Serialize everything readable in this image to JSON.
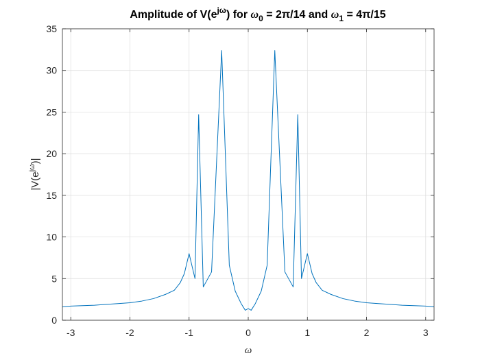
{
  "chart_data": {
    "type": "line",
    "title": {
      "prefix": "Amplitude of V(e",
      "sup": "jω",
      "mid1": ") for ",
      "omega0": "ω",
      "sub0": "0",
      "eq0": " = 2π/14 and ",
      "omega1": "ω",
      "sub1": "1",
      "eq1": " = 4π/15"
    },
    "xlabel": "ω",
    "ylabel": {
      "prefix": "|V(e",
      "sup": "jω",
      "suffix": ")|"
    },
    "xlim": [
      -3.14159,
      3.14159
    ],
    "ylim": [
      0,
      35
    ],
    "xticks": [
      -3,
      -2,
      -1,
      0,
      1,
      2,
      3
    ],
    "xtick_labels": [
      "-3",
      "-2",
      "-1",
      "0",
      "1",
      "2",
      "3"
    ],
    "yticks": [
      0,
      5,
      10,
      15,
      20,
      25,
      30,
      35
    ],
    "ytick_labels": [
      "0",
      "5",
      "10",
      "15",
      "20",
      "25",
      "30",
      "35"
    ],
    "grid": true,
    "line_color": "#0072BD",
    "peaks": [
      {
        "x": -0.838,
        "y": 24.7
      },
      {
        "x": -0.449,
        "y": 32.4
      },
      {
        "x": 0.449,
        "y": 32.4
      },
      {
        "x": 0.838,
        "y": 24.7
      }
    ],
    "series": [
      {
        "points": [
          [
            -3.1416,
            1.6
          ],
          [
            -3.0,
            1.7
          ],
          [
            -2.8,
            1.75
          ],
          [
            -2.6,
            1.8
          ],
          [
            -2.4,
            1.9
          ],
          [
            -2.2,
            2.0
          ],
          [
            -2.0,
            2.1
          ],
          [
            -1.8,
            2.3
          ],
          [
            -1.6,
            2.6
          ],
          [
            -1.4,
            3.1
          ],
          [
            -1.25,
            3.6
          ],
          [
            -1.15,
            4.5
          ],
          [
            -1.08,
            5.6
          ],
          [
            -1.0,
            8.0
          ],
          [
            -0.9,
            5.0
          ],
          [
            -0.838,
            24.7
          ],
          [
            -0.76,
            4.0
          ],
          [
            -0.62,
            5.8
          ],
          [
            -0.449,
            32.4
          ],
          [
            -0.32,
            6.6
          ],
          [
            -0.22,
            3.5
          ],
          [
            -0.12,
            2.0
          ],
          [
            -0.05,
            1.2
          ],
          [
            0.0,
            1.4
          ],
          [
            0.05,
            1.2
          ],
          [
            0.12,
            2.0
          ],
          [
            0.22,
            3.5
          ],
          [
            0.32,
            6.6
          ],
          [
            0.449,
            32.4
          ],
          [
            0.62,
            5.8
          ],
          [
            0.76,
            4.0
          ],
          [
            0.838,
            24.7
          ],
          [
            0.9,
            5.0
          ],
          [
            1.0,
            8.0
          ],
          [
            1.08,
            5.6
          ],
          [
            1.15,
            4.5
          ],
          [
            1.25,
            3.6
          ],
          [
            1.4,
            3.1
          ],
          [
            1.6,
            2.6
          ],
          [
            1.8,
            2.3
          ],
          [
            2.0,
            2.1
          ],
          [
            2.2,
            2.0
          ],
          [
            2.4,
            1.9
          ],
          [
            2.6,
            1.8
          ],
          [
            2.8,
            1.75
          ],
          [
            3.0,
            1.7
          ],
          [
            3.1416,
            1.6
          ]
        ]
      }
    ]
  }
}
